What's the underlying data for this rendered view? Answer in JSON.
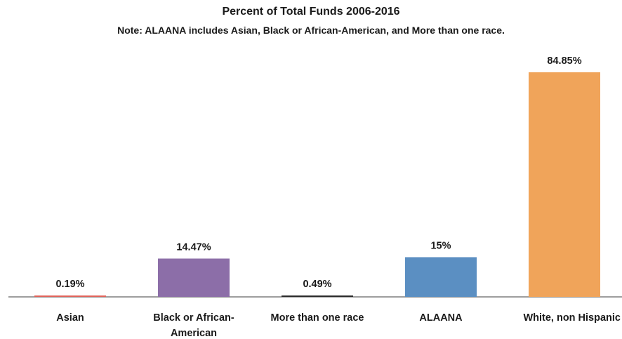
{
  "chart_data": {
    "type": "bar",
    "title": "Percent of Total Funds 2006-2016",
    "subtitle": "Note: ALAANA includes Asian, Black or African-American, and More than one race.",
    "categories": [
      "Asian",
      "Black or African-American",
      "More than one race",
      "ALAANA",
      "White, non Hispanic"
    ],
    "category_lines": [
      [
        "Asian"
      ],
      [
        "Black or African-",
        "American"
      ],
      [
        "More than one race"
      ],
      [
        "ALAANA"
      ],
      [
        "White, non Hispanic"
      ]
    ],
    "values": [
      0.19,
      14.47,
      0.49,
      15,
      84.85
    ],
    "value_labels": [
      "0.19%",
      "14.47%",
      "0.49%",
      "15%",
      "84.85%"
    ],
    "colors": [
      "#e0635a",
      "#8c6ea8",
      "#2b2b2b",
      "#5b8fc2",
      "#f0a45a"
    ],
    "ylim": [
      0,
      84.85
    ],
    "xlabel": "",
    "ylabel": "",
    "grid": false,
    "legend": "none"
  }
}
